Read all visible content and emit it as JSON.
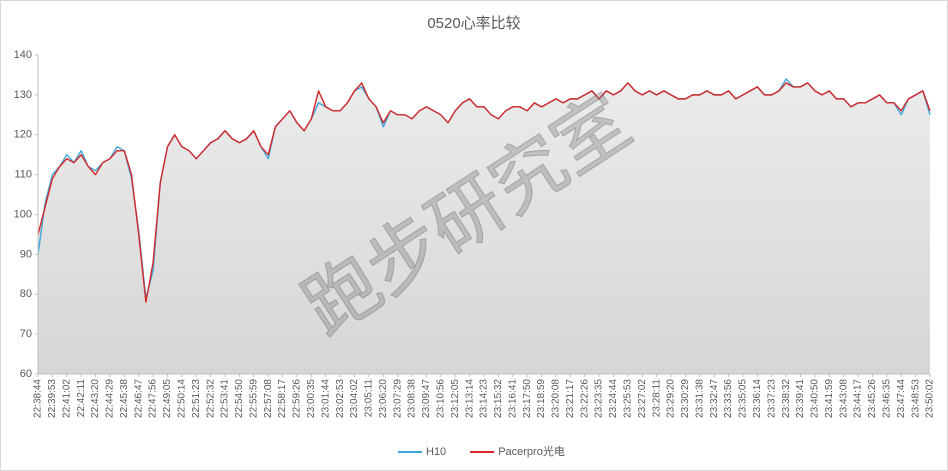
{
  "chart_data": {
    "type": "line",
    "title": "0520心率比较",
    "watermark": "跑步研究室",
    "categories": [
      "22:38:44",
      null,
      "22:39:53",
      null,
      "22:41:02",
      null,
      "22:42:11",
      null,
      "22:43:20",
      null,
      "22:44:29",
      null,
      "22:45:38",
      null,
      "22:46:47",
      null,
      "22:47:56",
      null,
      "22:49:05",
      null,
      "22:50:14",
      null,
      "22:51:23",
      null,
      "22:52:32",
      null,
      "22:53:41",
      null,
      "22:54:50",
      null,
      "22:55:59",
      null,
      "22:57:08",
      null,
      "22:58:17",
      null,
      "22:59:26",
      null,
      "23:00:35",
      null,
      "23:01:44",
      null,
      "23:02:53",
      null,
      "23:04:02",
      null,
      "23:05:11",
      null,
      "23:06:20",
      null,
      "23:07:29",
      null,
      "23:08:38",
      null,
      "23:09:47",
      null,
      "23:10:56",
      null,
      "23:12:05",
      null,
      "23:13:14",
      null,
      "23:14:23",
      null,
      "23:15:32",
      null,
      "23:16:41",
      null,
      "23:17:50",
      null,
      "23:18:59",
      null,
      "23:20:08",
      null,
      "23:21:17",
      null,
      "23:22:26",
      null,
      "23:23:35",
      null,
      "23:24:44",
      null,
      "23:25:53",
      null,
      "23:27:02",
      null,
      "23:28:11",
      null,
      "23:29:20",
      null,
      "23:30:29",
      null,
      "23:31:38",
      null,
      "23:32:47",
      null,
      "23:33:56",
      null,
      "23:35:05",
      null,
      "23:36:14",
      null,
      "23:37:23",
      null,
      "23:38:32",
      null,
      "23:39:41",
      null,
      "23:40:50",
      null,
      "23:41:59",
      null,
      "23:43:08",
      null,
      "23:44:17",
      null,
      "23:45:26",
      null,
      "23:46:35",
      null,
      "23:47:44",
      null,
      "23:48:53",
      null,
      "23:50:02"
    ],
    "series": [
      {
        "name": "H10",
        "color": "#3ea6dc",
        "values": [
          90,
          103,
          110,
          112,
          115,
          113,
          116,
          112,
          111,
          113,
          114,
          117,
          116,
          109,
          96,
          79,
          86,
          108,
          117,
          120,
          117,
          116,
          114,
          116,
          118,
          119,
          121,
          119,
          118,
          119,
          121,
          117,
          114,
          122,
          124,
          126,
          123,
          121,
          124,
          128,
          127,
          126,
          126,
          128,
          131,
          132,
          129,
          127,
          122,
          126,
          125,
          125,
          124,
          126,
          127,
          126,
          125,
          123,
          126,
          128,
          129,
          127,
          127,
          125,
          124,
          126,
          127,
          127,
          126,
          128,
          127,
          128,
          129,
          128,
          129,
          129,
          130,
          131,
          129,
          131,
          130,
          131,
          133,
          131,
          130,
          131,
          130,
          131,
          130,
          129,
          129,
          130,
          130,
          131,
          130,
          130,
          131,
          129,
          130,
          131,
          132,
          130,
          130,
          131,
          134,
          132,
          132,
          133,
          131,
          130,
          131,
          129,
          129,
          127,
          128,
          128,
          129,
          130,
          128,
          128,
          125,
          129,
          130,
          131,
          125
        ]
      },
      {
        "name": "Pacerpro光电",
        "color": "#d62728",
        "values": [
          95,
          102,
          109,
          112,
          114,
          113,
          115,
          112,
          110,
          113,
          114,
          116,
          116,
          110,
          95,
          78,
          88,
          108,
          117,
          120,
          117,
          116,
          114,
          116,
          118,
          119,
          121,
          119,
          118,
          119,
          121,
          117,
          115,
          122,
          124,
          126,
          123,
          121,
          124,
          131,
          127,
          126,
          126,
          128,
          131,
          133,
          129,
          127,
          123,
          126,
          125,
          125,
          124,
          126,
          127,
          126,
          125,
          123,
          126,
          128,
          129,
          127,
          127,
          125,
          124,
          126,
          127,
          127,
          126,
          128,
          127,
          128,
          129,
          128,
          129,
          129,
          130,
          131,
          129,
          131,
          130,
          131,
          133,
          131,
          130,
          131,
          130,
          131,
          130,
          129,
          129,
          130,
          130,
          131,
          130,
          130,
          131,
          129,
          130,
          131,
          132,
          130,
          130,
          131,
          133,
          132,
          132,
          133,
          131,
          130,
          131,
          129,
          129,
          127,
          128,
          128,
          129,
          130,
          128,
          128,
          126,
          129,
          130,
          131,
          126
        ]
      }
    ],
    "ylim": [
      60,
      140
    ],
    "yticks": [
      60,
      70,
      80,
      90,
      100,
      110,
      120,
      130,
      140
    ],
    "grid": false,
    "legend": "bottom"
  }
}
